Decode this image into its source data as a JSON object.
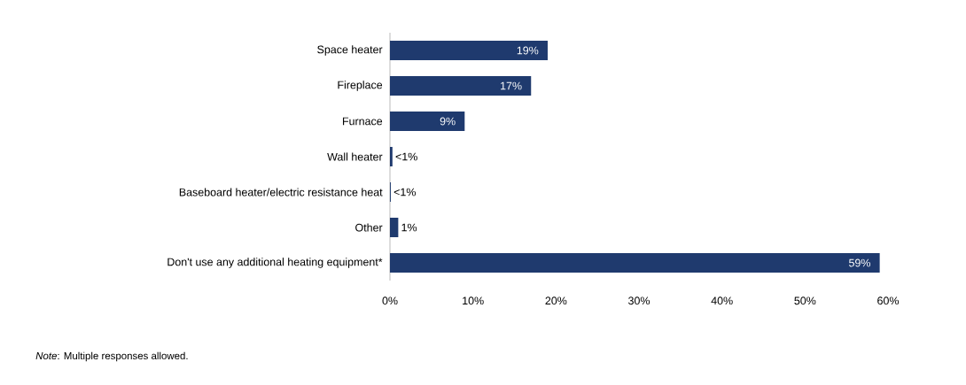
{
  "chart_data": {
    "type": "bar",
    "orientation": "horizontal",
    "categories": [
      "Space heater",
      "Fireplace",
      "Furnace",
      "Wall heater",
      "Baseboard heater/electric resistance heat",
      "Other",
      "Don't use any additional heating equipment*"
    ],
    "values": [
      19,
      17,
      9,
      0.3,
      0.1,
      1,
      59
    ],
    "value_labels": [
      "19%",
      "17%",
      "9%",
      "<1%",
      "<1%",
      "1%",
      "59%"
    ],
    "color": "#1f3a6e",
    "xlim": [
      0,
      60
    ],
    "xticks": [
      {
        "value": 0,
        "label": "0%"
      },
      {
        "value": 10,
        "label": "10%"
      },
      {
        "value": 20,
        "label": "20%"
      },
      {
        "value": 30,
        "label": "30%"
      },
      {
        "value": 40,
        "label": "40%"
      },
      {
        "value": 50,
        "label": "50%"
      },
      {
        "value": 60,
        "label": "60%"
      }
    ],
    "annotations": [
      "*Note*: Multiple responses allowed."
    ]
  }
}
